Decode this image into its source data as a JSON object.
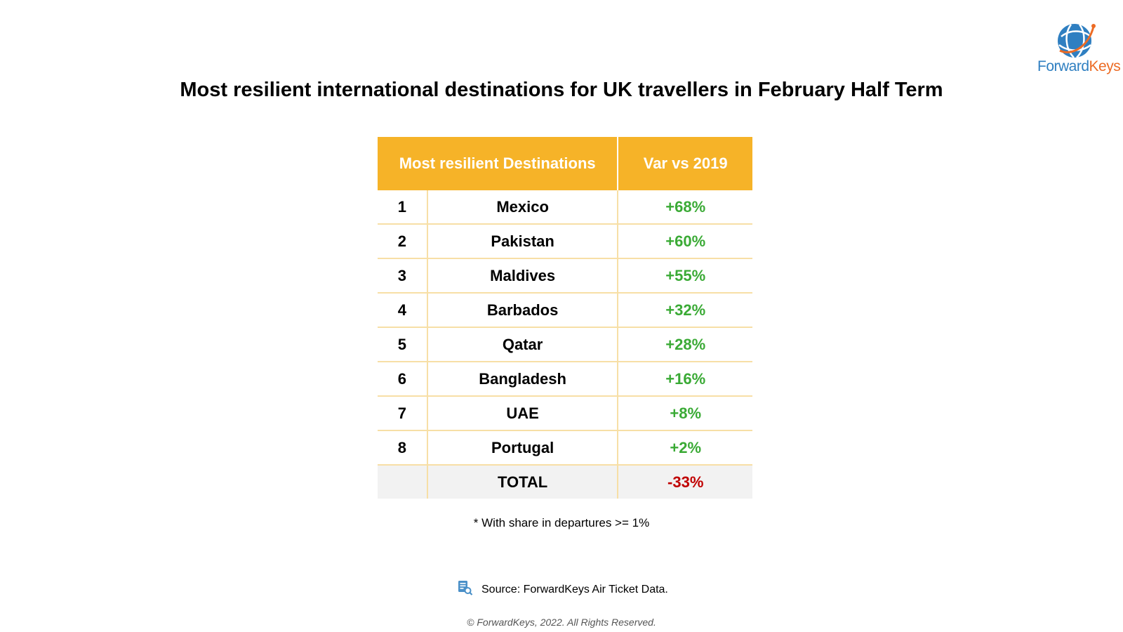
{
  "logo": {
    "text_part1": "Forward",
    "text_part2": "Keys",
    "icon": "globe-logo-icon",
    "colors": {
      "blue": "#2f7fc1",
      "orange": "#ec6b24"
    }
  },
  "title": "Most resilient international destinations for UK travellers in February Half Term",
  "table": {
    "headers": [
      "Most resilient Destinations",
      "Var vs 2019"
    ],
    "rows": [
      {
        "rank": "1",
        "name": "Mexico",
        "var": "+68%"
      },
      {
        "rank": "2",
        "name": "Pakistan",
        "var": "+60%"
      },
      {
        "rank": "3",
        "name": "Maldives",
        "var": "+55%"
      },
      {
        "rank": "4",
        "name": "Barbados",
        "var": "+32%"
      },
      {
        "rank": "5",
        "name": "Qatar",
        "var": "+28%"
      },
      {
        "rank": "6",
        "name": "Bangladesh",
        "var": "+16%"
      },
      {
        "rank": "7",
        "name": "UAE",
        "var": "+8%"
      },
      {
        "rank": "8",
        "name": "Portugal",
        "var": "+2%"
      }
    ],
    "total": {
      "rank": "",
      "name": "TOTAL",
      "var": "-33%"
    },
    "colors": {
      "header": "#f6b328",
      "positive": "#3aaa35",
      "negative": "#c00000"
    }
  },
  "note": "* With share in departures >= 1%",
  "source": {
    "icon": "document-search-icon",
    "text": "Source: ForwardKeys Air Ticket Data."
  },
  "copyright": "© ForwardKeys, 2022. All Rights Reserved."
}
